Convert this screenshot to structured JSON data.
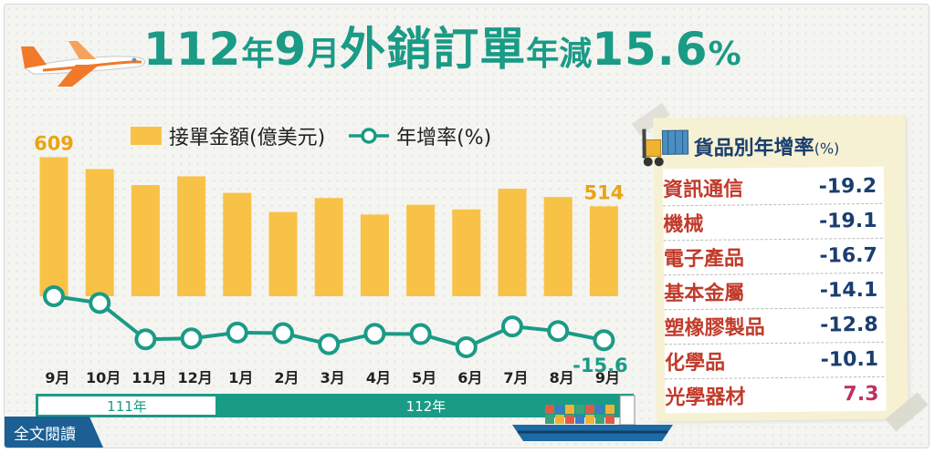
{
  "title": {
    "part1": "112",
    "part2": "年",
    "part3": "9",
    "part4": "月",
    "part5": "外銷訂單",
    "part6": "年減",
    "part7": "15.6",
    "part8": "%"
  },
  "legend": {
    "bar_label": "接單金額(億美元)",
    "line_label": "年增率(%)"
  },
  "colors": {
    "bar": "#f8c247",
    "line": "#1a9b86",
    "title": "#1a9b86",
    "panel_name": "#c23b2b",
    "panel_value": "#1a3e6e"
  },
  "chart_data": {
    "type": "bar",
    "categories": [
      "9月",
      "10月",
      "11月",
      "12月",
      "1月",
      "2月",
      "3月",
      "4月",
      "5月",
      "6月",
      "7月",
      "8月",
      "9月"
    ],
    "series": [
      {
        "name": "接單金額(億美元)",
        "values": [
          609,
          586,
          555,
          572,
          540,
          503,
          530,
          498,
          517,
          508,
          548,
          532,
          514
        ]
      },
      {
        "name": "年增率(%)",
        "values": [
          -1.2,
          -3.4,
          -15.3,
          -15.0,
          -13.1,
          -13.3,
          -16.9,
          -13.5,
          -13.6,
          -17.9,
          -11.1,
          -12.6,
          -15.6
        ]
      }
    ],
    "labels": {
      "bar_first": "609",
      "bar_last": "514",
      "line_last": "-15.6"
    },
    "year_groups": [
      {
        "label": "111年",
        "span": 4
      },
      {
        "label": "112年",
        "span": 9
      }
    ]
  },
  "panel": {
    "title": "貨品別年增率",
    "unit": "(%)",
    "items": [
      {
        "name": "資訊通信",
        "value": "-19.2"
      },
      {
        "name": "機械",
        "value": "-19.1"
      },
      {
        "name": "電子產品",
        "value": "-16.7"
      },
      {
        "name": "基本金屬",
        "value": "-14.1"
      },
      {
        "name": "塑橡膠製品",
        "value": "-12.8"
      },
      {
        "name": "化學品",
        "value": "-10.1"
      },
      {
        "name": "光學器材",
        "value": "7.3"
      }
    ]
  },
  "read_more": "全文閱讀",
  "icons": {
    "plane": "airplane-icon",
    "ship": "cargo-ship-icon",
    "forklift": "forklift-icon",
    "legend_marker": "circle-marker-icon"
  }
}
